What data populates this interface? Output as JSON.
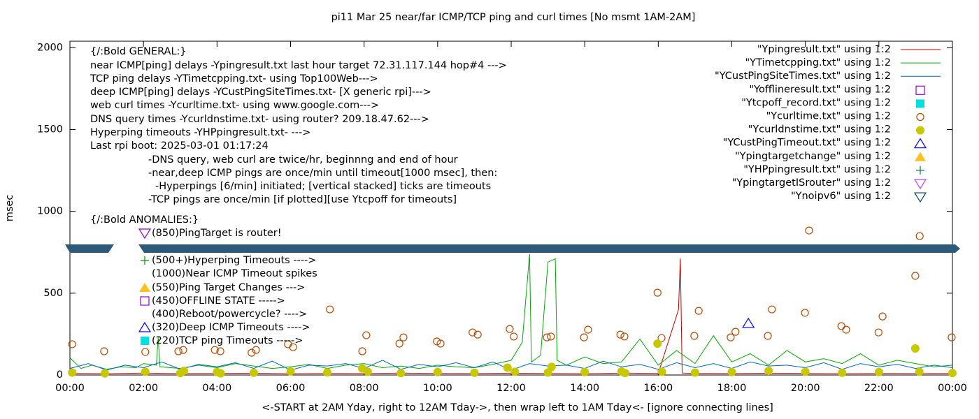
{
  "chart_data": {
    "type": "line",
    "title": "pi11 Mar 25  near/far ICMP/TCP ping and curl times [No msmt 1AM-2AM]",
    "x_label": "<-START at 2AM Yday, right to 12AM Tday->, then wrap left to 1AM Tday<- [ignore connecting lines]",
    "y_label": "msec",
    "xlim": [
      0,
      24
    ],
    "ylim": [
      0,
      2040
    ],
    "xticks": [
      {
        "value": 0,
        "label": "00:00"
      },
      {
        "value": 2,
        "label": "02:00"
      },
      {
        "value": 4,
        "label": "04:00"
      },
      {
        "value": 6,
        "label": "06:00"
      },
      {
        "value": 8,
        "label": "08:00"
      },
      {
        "value": 10,
        "label": "10:00"
      },
      {
        "value": 12,
        "label": "12:00"
      },
      {
        "value": 14,
        "label": "14:00"
      },
      {
        "value": 16,
        "label": "16:00"
      },
      {
        "value": 18,
        "label": "18:00"
      },
      {
        "value": 20,
        "label": "20:00"
      },
      {
        "value": 22,
        "label": "22:00"
      },
      {
        "value": 24,
        "label": "00:00"
      }
    ],
    "yticks": [
      0,
      500,
      1000,
      1500,
      2000
    ],
    "annotations": [
      "{/:Bold GENERAL:}",
      "near ICMP[ping] delays -Ypingresult.txt last hour target 72.31.117.144 hop#4 --->",
      "TCP ping delays -YTimetcpping.txt- using Top100Web--->",
      "deep ICMP[ping] delays -YCustPingSiteTimes.txt- [X generic rpi]--->",
      "web curl times -Ycurltime.txt- using www.google.com--->",
      "DNS query times -Ycurldnstime.txt- using router? 209.18.47.62--->",
      "Hyperping timeouts -YHPpingresult.txt- --->",
      "Last rpi boot: 2025-03-01 01:17:24",
      "-DNS query, web curl are twice/hr, beginnng and end of hour",
      "-near,deep ICMP pings are once/min until timeout[1000 msec], then:",
      "-Hyperpings [6/min] initiated; [vertical stacked] ticks are timeouts",
      "-TCP pings are once/min [if plotted][use Ytcpoff for timeouts]",
      "{/:Bold ANOMALIES:}",
      "(850)PingTarget is router!",
      "(500+)Hyperping Timeouts ---->",
      "(1000)Near ICMP Timeout spikes",
      "(550)Ping Target Changes --->",
      "(450)OFFLINE STATE ----->",
      "(400)Reboot/powercycle? ---->",
      "(320)Deep ICMP Timeouts ---->",
      "(220)TCP ping Timeouts ----->"
    ],
    "series": [
      {
        "name": "\"Ypingresult.txt\" using 1:2",
        "color": "#cc0000",
        "marker": "line",
        "x": [
          0,
          1,
          2,
          3,
          4,
          5,
          6,
          7,
          8,
          9,
          10,
          11,
          12,
          13,
          14,
          15,
          16,
          16.55,
          16.6,
          16.65,
          17,
          18,
          19,
          20,
          21,
          22,
          23,
          24
        ],
        "values": [
          10,
          8,
          12,
          9,
          10,
          11,
          8,
          10,
          9,
          12,
          10,
          9,
          11,
          10,
          8,
          12,
          10,
          400,
          712,
          12,
          10,
          9,
          11,
          10,
          8,
          10,
          9,
          10
        ]
      },
      {
        "name": "\"YTimetcpping.txt\" using 1:2",
        "color": "#00aa00",
        "marker": "line",
        "x": [
          0,
          0.3,
          0.6,
          1,
          1.4,
          1.8,
          2,
          2.35,
          2.4,
          2.45,
          3,
          3.5,
          4,
          4.5,
          5,
          5.5,
          6,
          6.5,
          7,
          7.5,
          8,
          8.5,
          9,
          9.5,
          10,
          10.5,
          11,
          11.5,
          12,
          12.3,
          12.5,
          12.55,
          12.8,
          13,
          13.2,
          13.25,
          13.5,
          14,
          14.5,
          15,
          15.5,
          16,
          16.5,
          17,
          17.5,
          18,
          18.5,
          19,
          19.5,
          20,
          20.5,
          21,
          21.5,
          22,
          22.5,
          23,
          23.5,
          24
        ],
        "values": [
          105,
          40,
          60,
          35,
          50,
          45,
          70,
          60,
          230,
          50,
          40,
          60,
          45,
          70,
          55,
          40,
          50,
          65,
          40,
          60,
          70,
          45,
          55,
          40,
          60,
          50,
          45,
          65,
          90,
          200,
          740,
          80,
          120,
          690,
          710,
          90,
          60,
          110,
          70,
          80,
          220,
          60,
          150,
          70,
          240,
          80,
          130,
          60,
          150,
          80,
          100,
          70,
          130,
          60,
          90,
          70,
          50,
          60
        ]
      },
      {
        "name": "\"YCustPingSiteTimes.txt\" using 1:2",
        "color": "#0066cc",
        "marker": "line",
        "x": [
          0,
          0.5,
          1,
          1.5,
          2,
          2.5,
          3,
          3.5,
          4,
          4.5,
          5,
          5.5,
          6,
          6.5,
          7,
          7.5,
          8,
          8.5,
          9,
          9.5,
          10,
          10.5,
          11,
          11.5,
          12,
          12.5,
          13,
          13.5,
          14,
          14.5,
          15,
          15.5,
          16,
          16.5,
          17,
          17.5,
          18,
          18.5,
          19,
          19.5,
          20,
          20.5,
          21,
          21.5,
          22,
          22.5,
          23,
          23.5,
          24
        ],
        "values": [
          40,
          70,
          30,
          60,
          45,
          80,
          35,
          65,
          50,
          75,
          40,
          85,
          30,
          60,
          55,
          70,
          40,
          90,
          35,
          65,
          50,
          75,
          45,
          80,
          30,
          70,
          55,
          60,
          40,
          85,
          50,
          65,
          35,
          75,
          45,
          70,
          40,
          80,
          55,
          60,
          45,
          75,
          35,
          70,
          50,
          65,
          40,
          60,
          45
        ]
      },
      {
        "name": "\"Yofflineresult.txt\" using 1:2",
        "color": "#9400d3",
        "marker": "square-open",
        "x": [],
        "values": []
      },
      {
        "name": "\"Ytcpoff_record.txt\" using 1:2",
        "color": "#00e0e0",
        "marker": "square-filled",
        "x": [],
        "values": []
      },
      {
        "name": "\"Ycurltime.txt\" using 1:2",
        "color": "#b84a00",
        "marker": "circle-open",
        "x": [
          0.06,
          0.93,
          2.05,
          2.95,
          3.08,
          3.94,
          4.09,
          4.94,
          5.06,
          5.93,
          6.07,
          7.07,
          7.95,
          8.06,
          8.96,
          9.07,
          9.98,
          10.08,
          10.95,
          11.09,
          11.96,
          12.07,
          12.97,
          13.08,
          13.98,
          14.09,
          14.97,
          15.08,
          15.98,
          16.09,
          16.98,
          17.1,
          17.97,
          18.1,
          18.98,
          19.09,
          19.99,
          20.1,
          20.98,
          21.11,
          21.99,
          22.1,
          22.99,
          23.11,
          23.98
        ],
        "values": [
          188,
          145,
          141,
          145,
          153,
          153,
          145,
          136,
          153,
          188,
          170,
          401,
          145,
          243,
          192,
          230,
          205,
          192,
          260,
          247,
          281,
          235,
          230,
          235,
          230,
          277,
          247,
          235,
          503,
          226,
          239,
          392,
          230,
          264,
          239,
          401,
          380,
          883,
          299,
          277,
          260,
          358,
          606,
          849,
          230
        ]
      },
      {
        "name": "\"Ycurldnstime.txt\" using 1:2",
        "color": "#c8c800",
        "marker": "circle-filled",
        "x": [
          0.06,
          0.95,
          2.05,
          3,
          3.1,
          4,
          4.1,
          5,
          6,
          7,
          7.95,
          8.1,
          9,
          10,
          11,
          11.9,
          12.1,
          13,
          13.1,
          14,
          15,
          15.1,
          15.98,
          16.1,
          17,
          18,
          19,
          20,
          21,
          22,
          22.99,
          23.1,
          24
        ],
        "values": [
          15,
          10,
          20,
          12,
          25,
          18,
          10,
          14,
          22,
          16,
          40,
          20,
          12,
          18,
          14,
          45,
          20,
          15,
          50,
          18,
          22,
          12,
          192,
          20,
          15,
          18,
          25,
          20,
          14,
          18,
          162,
          20,
          12
        ]
      },
      {
        "name": "\"YCustPingTimeout.txt\" using 1:2",
        "color": "#0000ff",
        "marker": "triangle-up-open",
        "x": [
          18.45
        ],
        "values": [
          316
        ]
      },
      {
        "name": "\"Ypingtargetchange\" using 1:2",
        "color": "#ffc020",
        "marker": "triangle-up-filled",
        "x": [],
        "values": []
      },
      {
        "name": "\"YHPpingresult.txt\" using 1:2",
        "color": "#008040",
        "marker": "plus",
        "x": [],
        "values": []
      },
      {
        "name": "\"YpingtargetISrouter\" using 1:2",
        "color": "#c040ff",
        "marker": "triangle-down-open",
        "x": [],
        "values": []
      },
      {
        "name": "\"Ynoipv6\" using 1:2",
        "color": "#004080",
        "marker": "triangle-down-open",
        "x": [],
        "values": []
      }
    ]
  }
}
